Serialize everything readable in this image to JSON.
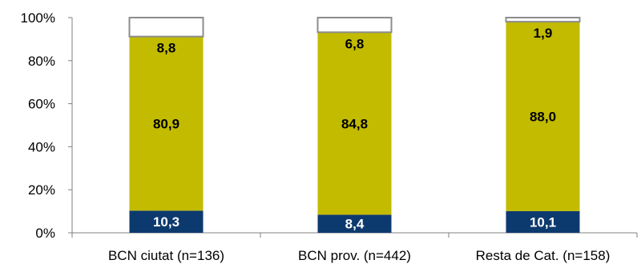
{
  "chart_data": {
    "type": "bar",
    "stacked": true,
    "percent_stacked": true,
    "categories": [
      "BCN ciutat (n=136)",
      "BCN prov. (n=442)",
      "Resta de Cat. (n=158)"
    ],
    "series": [
      {
        "values": [
          10.3,
          8.4,
          10.1
        ],
        "labels": [
          "10,3",
          "8,4",
          "10,1"
        ],
        "color": "#0d3a6e",
        "label_color": "#ffffff"
      },
      {
        "values": [
          80.9,
          84.8,
          88.0
        ],
        "labels": [
          "80,9",
          "84,8",
          "88,0"
        ],
        "color": "#c2bb00",
        "label_color": "#000000"
      },
      {
        "values": [
          8.8,
          6.8,
          1.9
        ],
        "labels": [
          "8,8",
          "6,8",
          "1,9"
        ],
        "color": "#ffffff",
        "label_color": "#000000"
      }
    ],
    "ylim": [
      0,
      100
    ],
    "yticks": [
      "0%",
      "20%",
      "40%",
      "60%",
      "80%",
      "100%"
    ],
    "grid": false,
    "legend": "none",
    "bar_outline_color": "#8c8c8c",
    "axis_color": "#808080"
  }
}
